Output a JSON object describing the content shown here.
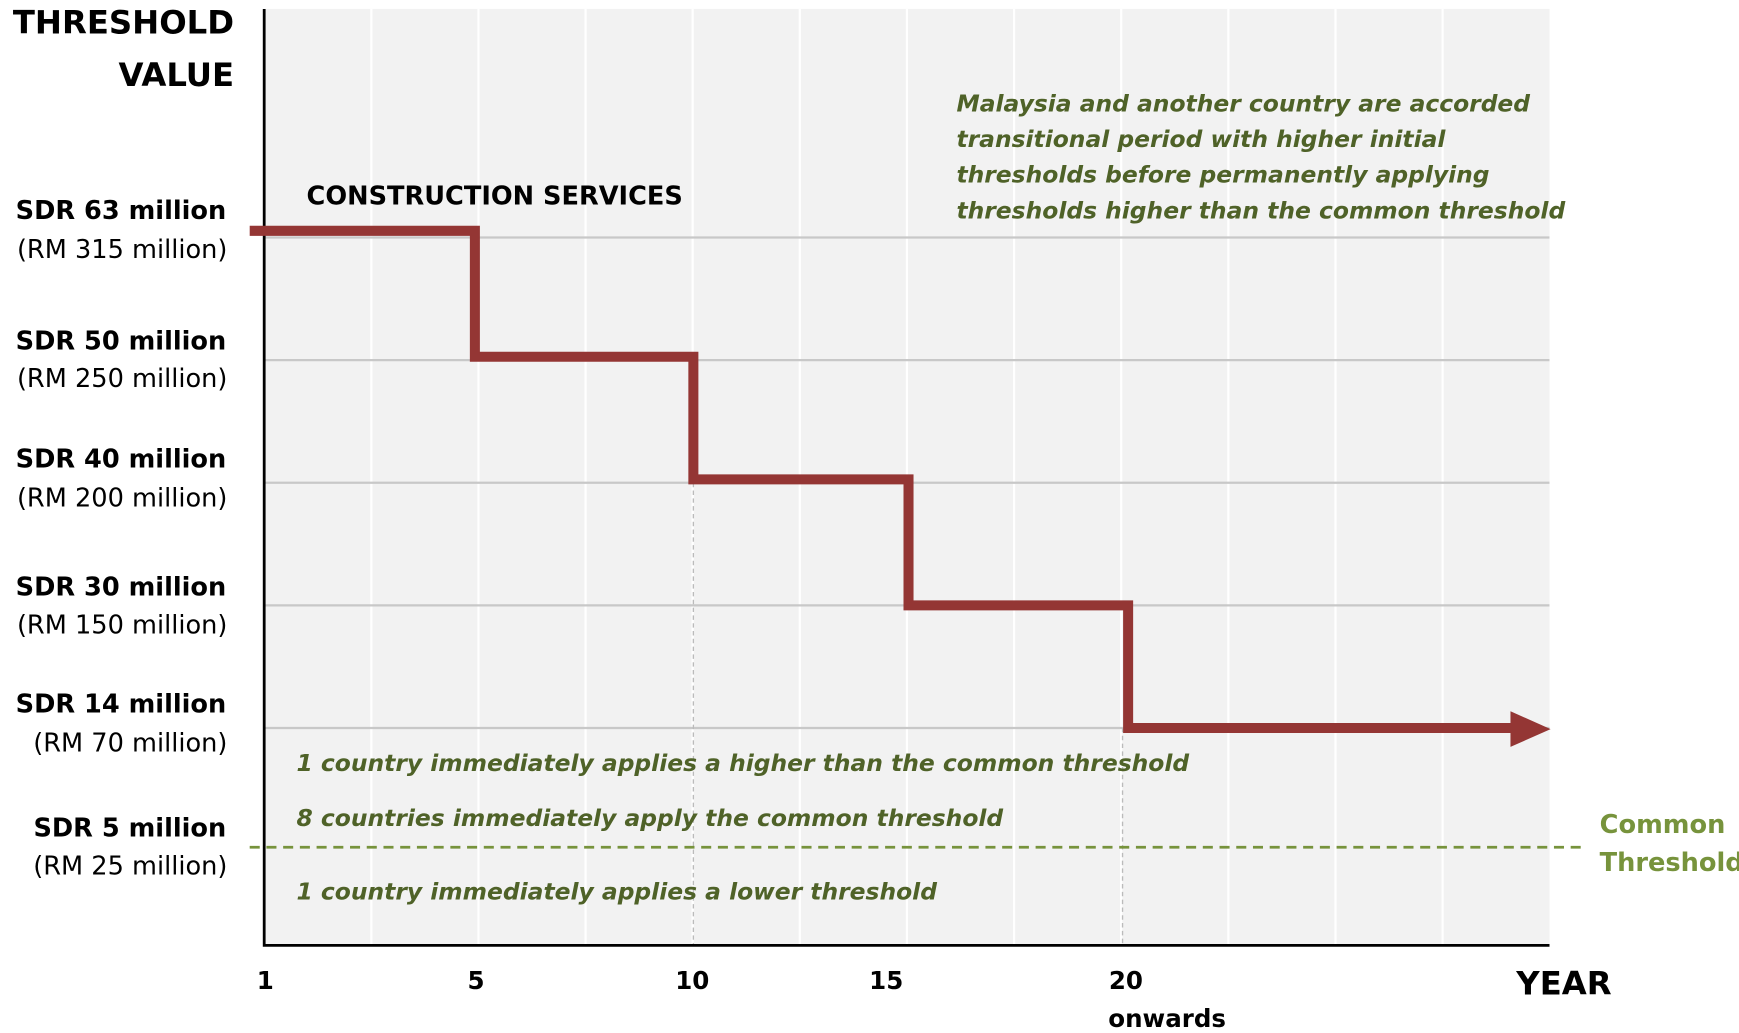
{
  "y_title": [
    "THRESHOLD",
    "VALUE"
  ],
  "x_title": "YEAR",
  "series_label": "CONSTRUCTION SERVICES",
  "levels": [
    {
      "sdr": "SDR 63 million",
      "rm": "(RM 315 million)"
    },
    {
      "sdr": "SDR 50 million",
      "rm": "(RM 250 million)"
    },
    {
      "sdr": "SDR 40 million",
      "rm": "(RM 200 million)"
    },
    {
      "sdr": "SDR 30 million",
      "rm": "(RM 150 million)"
    },
    {
      "sdr": "SDR 14 million",
      "rm": "(RM 70 million)"
    },
    {
      "sdr": "SDR 5 million",
      "rm": "(RM 25 million)"
    }
  ],
  "x_ticks": [
    "1",
    "5",
    "10",
    "15",
    "20"
  ],
  "x_tick_note": "onwards",
  "annotation_top": [
    "Malaysia and another country are accorded",
    "transitional period with higher initial",
    "thresholds before permanently applying",
    "thresholds higher than the common threshold"
  ],
  "annotations_lower": [
    "1 country immediately applies a higher than the common threshold",
    "8 countries immediately apply the common threshold",
    "1 country immediately applies a lower threshold"
  ],
  "common_threshold_label": [
    "Common",
    "Threshold"
  ]
}
